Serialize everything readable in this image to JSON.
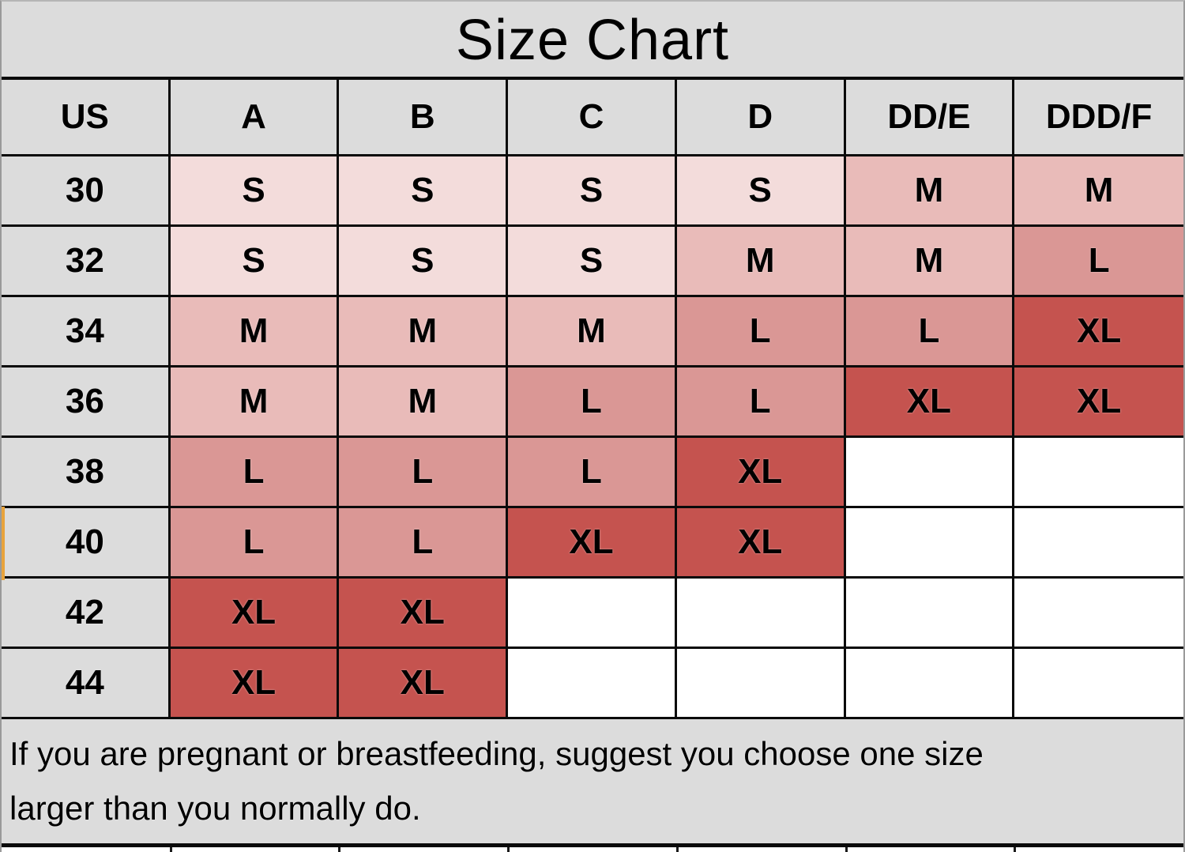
{
  "title": "Size Chart",
  "table": {
    "columns": [
      "US",
      "A",
      "B",
      "C",
      "D",
      "DD/E",
      "DDD/F"
    ],
    "rows": [
      {
        "label": "30",
        "values": [
          "S",
          "S",
          "S",
          "S",
          "M",
          "M"
        ]
      },
      {
        "label": "32",
        "values": [
          "S",
          "S",
          "S",
          "M",
          "M",
          "L"
        ]
      },
      {
        "label": "34",
        "values": [
          "M",
          "M",
          "M",
          "L",
          "L",
          "XL"
        ]
      },
      {
        "label": "36",
        "values": [
          "M",
          "M",
          "L",
          "L",
          "XL",
          "XL"
        ]
      },
      {
        "label": "38",
        "values": [
          "L",
          "L",
          "L",
          "XL",
          "",
          ""
        ]
      },
      {
        "label": "40",
        "values": [
          "L",
          "L",
          "XL",
          "XL",
          "",
          ""
        ]
      },
      {
        "label": "42",
        "values": [
          "XL",
          "XL",
          "",
          "",
          "",
          ""
        ]
      },
      {
        "label": "44",
        "values": [
          "XL",
          "XL",
          "",
          "",
          "",
          ""
        ]
      }
    ]
  },
  "note": {
    "line1": "If you are pregnant or breastfeeding, suggest you choose one size",
    "line2": "larger than you normally do."
  },
  "colors": {
    "S": "#f3dcdb",
    "M": "#e9bbb9",
    "L": "#da9795",
    "XL": "#c5534f",
    "empty": "#ffffff",
    "header_bg": "#dcdcdc",
    "accent_orange": "#e8a33c"
  },
  "chart_data": {
    "type": "table",
    "title": "Size Chart",
    "columns": [
      "US",
      "A",
      "B",
      "C",
      "D",
      "DD/E",
      "DDD/F"
    ],
    "rows": [
      [
        "30",
        "S",
        "S",
        "S",
        "S",
        "M",
        "M"
      ],
      [
        "32",
        "S",
        "S",
        "S",
        "M",
        "M",
        "L"
      ],
      [
        "34",
        "M",
        "M",
        "M",
        "L",
        "L",
        "XL"
      ],
      [
        "36",
        "M",
        "M",
        "L",
        "L",
        "XL",
        "XL"
      ],
      [
        "38",
        "L",
        "L",
        "L",
        "XL",
        "",
        ""
      ],
      [
        "40",
        "L",
        "L",
        "XL",
        "XL",
        "",
        ""
      ],
      [
        "42",
        "XL",
        "XL",
        "",
        "",
        "",
        ""
      ],
      [
        "44",
        "XL",
        "XL",
        "",
        "",
        "",
        ""
      ]
    ],
    "annotations": [
      "If you are pregnant or breastfeeding, suggest you choose one size larger than you normally do."
    ],
    "legend_note": "cell shading darkens with size: S lightest pink, XL dark red"
  }
}
